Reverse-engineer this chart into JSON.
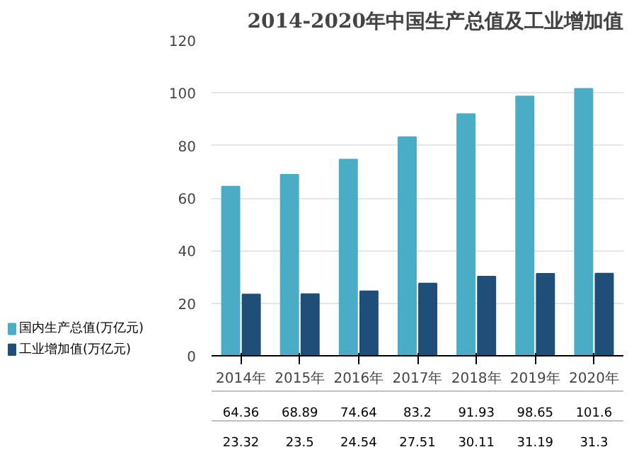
{
  "chart_data": {
    "type": "bar",
    "title": "2014-2020年中国生产总值及工业增加值",
    "categories": [
      "2014年",
      "2015年",
      "2016年",
      "2017年",
      "2018年",
      "2019年",
      "2020年"
    ],
    "series": [
      {
        "name": "国内生产总值(万亿元)",
        "color": "#4bacc6",
        "values": [
          64.36,
          68.89,
          74.64,
          83.2,
          91.93,
          98.65,
          101.6
        ]
      },
      {
        "name": "工业增加值(万亿元)",
        "color": "#1f4e79",
        "values": [
          23.32,
          23.5,
          24.54,
          27.51,
          30.11,
          31.19,
          31.3
        ]
      }
    ],
    "ylim": [
      0,
      120
    ],
    "yticks": [
      0,
      20,
      40,
      60,
      80,
      100,
      120
    ],
    "grid": "y",
    "legend": "bottom",
    "data_labels": true
  }
}
